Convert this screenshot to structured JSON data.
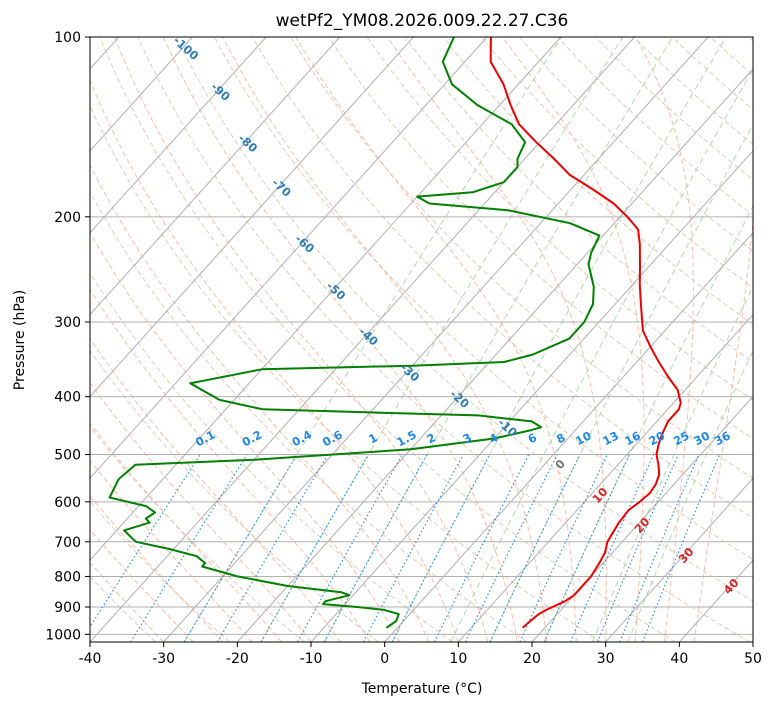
{
  "chart_data": {
    "type": "line",
    "title": "wetPf2_YM08.2026.009.22.27.C36",
    "xlabel": "Temperature (°C)",
    "ylabel": "Pressure (hPa)",
    "xlim": [
      -40,
      50
    ],
    "ylim": [
      1030,
      100
    ],
    "y_scale": "log",
    "grid": true,
    "xticks": [
      "-40",
      "-30",
      "-20",
      "-10",
      "0",
      "10",
      "20",
      "30",
      "40",
      "50"
    ],
    "yticks": [
      "100",
      "200",
      "300",
      "400",
      "500",
      "600",
      "700",
      "800",
      "900",
      "1000"
    ],
    "isotherm_labels": [
      "-100",
      "-90",
      "-80",
      "-70",
      "-60",
      "-50",
      "-40",
      "-30",
      "-20",
      "-10"
    ],
    "mixing_ratio_labels": [
      "0.1",
      "0.2",
      "0.4",
      "0.6",
      "1",
      "1.5",
      "2",
      "3",
      "4",
      "6",
      "8",
      "10",
      "13",
      "16",
      "20",
      "25",
      "30",
      "36"
    ],
    "moist_adiabat_labels": [
      "0",
      "10",
      "20",
      "30",
      "40"
    ],
    "colors": {
      "temperature": "#ee0000",
      "dewpoint": "#008000",
      "isotherm_label": "#2c7bb6",
      "mixing_ratio": "#1e88e5",
      "moist_adiabat_label": "#d62728",
      "zero_label": "#777777",
      "dry_adiabat": "#d9c2a6",
      "moist_adiabat": "#ffb49a",
      "mixing_ratio_dashed": "#a8d5a2"
    },
    "series": [
      {
        "key": "temperature",
        "points": [
          [
            17,
            975
          ],
          [
            17.2,
            950
          ],
          [
            17.5,
            925
          ],
          [
            18,
            910
          ],
          [
            18.5,
            900
          ],
          [
            19.5,
            880
          ],
          [
            20,
            860
          ],
          [
            20,
            800
          ],
          [
            19.5,
            760
          ],
          [
            19,
            730
          ],
          [
            18,
            700
          ],
          [
            17.2,
            650
          ],
          [
            17,
            620
          ],
          [
            17.5,
            600
          ],
          [
            17.8,
            580
          ],
          [
            17.5,
            560
          ],
          [
            16.8,
            540
          ],
          [
            15.5,
            520
          ],
          [
            14,
            500
          ],
          [
            13,
            480
          ],
          [
            12.2,
            460
          ],
          [
            11.5,
            440
          ],
          [
            11.5,
            420
          ],
          [
            11,
            410
          ],
          [
            9,
            390
          ],
          [
            6,
            370
          ],
          [
            3,
            350
          ],
          [
            0,
            330
          ],
          [
            -3,
            310
          ],
          [
            -6.5,
            280
          ],
          [
            -9,
            260
          ],
          [
            -11.5,
            240
          ],
          [
            -14,
            222
          ],
          [
            -16,
            210
          ],
          [
            -19,
            200
          ],
          [
            -22.5,
            190
          ],
          [
            -27,
            180
          ],
          [
            -32,
            170
          ],
          [
            -36,
            160
          ],
          [
            -40.5,
            150
          ],
          [
            -45,
            140
          ],
          [
            -48.5,
            130
          ],
          [
            -52,
            120
          ],
          [
            -56.5,
            110
          ],
          [
            -59.5,
            100
          ]
        ]
      },
      {
        "key": "dewpoint",
        "points": [
          [
            -1.5,
            975
          ],
          [
            -1,
            950
          ],
          [
            -1.5,
            925
          ],
          [
            -4,
            910
          ],
          [
            -8,
            900
          ],
          [
            -13,
            890
          ],
          [
            -13,
            880
          ],
          [
            -10.5,
            860
          ],
          [
            -12,
            850
          ],
          [
            -20,
            830
          ],
          [
            -28,
            800
          ],
          [
            -34,
            770
          ],
          [
            -34,
            760
          ],
          [
            -35,
            750
          ],
          [
            -36,
            740
          ],
          [
            -40.5,
            720
          ],
          [
            -46,
            700
          ],
          [
            -47,
            690
          ],
          [
            -49,
            670
          ],
          [
            -46.5,
            650
          ],
          [
            -47.5,
            640
          ],
          [
            -47,
            625
          ],
          [
            -49,
            610
          ],
          [
            -55,
            590
          ],
          [
            -56,
            550
          ],
          [
            -55.5,
            520
          ],
          [
            -40,
            510
          ],
          [
            -20,
            490
          ],
          [
            -10,
            470
          ],
          [
            -6,
            455
          ],
          [
            -5,
            450
          ],
          [
            -7,
            440
          ],
          [
            -15,
            430
          ],
          [
            -30,
            425
          ],
          [
            -45,
            420
          ],
          [
            -52,
            405
          ],
          [
            -58,
            380
          ],
          [
            -50,
            360
          ],
          [
            -30,
            355
          ],
          [
            -18,
            350
          ],
          [
            -15,
            340
          ],
          [
            -12,
            320
          ],
          [
            -12,
            300
          ],
          [
            -13,
            280
          ],
          [
            -15,
            262
          ],
          [
            -18.5,
            240
          ],
          [
            -19.5,
            230
          ],
          [
            -20.5,
            215
          ],
          [
            -26,
            205
          ],
          [
            -36,
            195
          ],
          [
            -47.5,
            190
          ],
          [
            -50,
            185
          ],
          [
            -43,
            182
          ],
          [
            -40,
            175
          ],
          [
            -40,
            165
          ],
          [
            -41,
            160
          ],
          [
            -42,
            150
          ],
          [
            -46,
            140
          ],
          [
            -53,
            130
          ],
          [
            -59,
            120
          ],
          [
            -63,
            110
          ],
          [
            -64.5,
            100
          ]
        ]
      }
    ]
  }
}
